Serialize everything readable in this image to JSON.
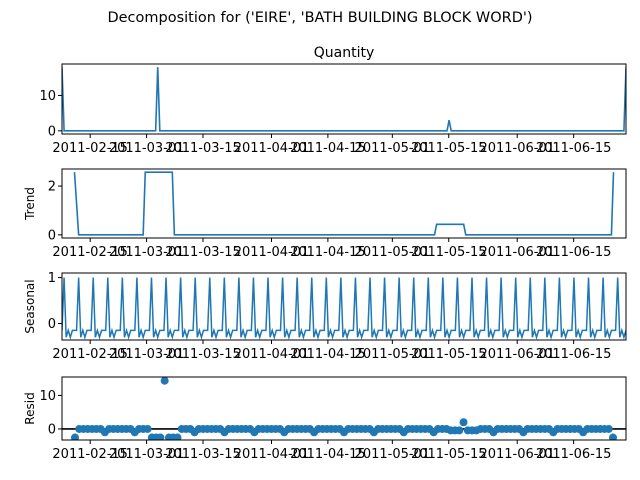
{
  "figure": {
    "title": "Decomposition for ('EIRE', 'BATH BUILDING BLOCK WORD')"
  },
  "colors": {
    "series": "#1f77b4",
    "axis": "#000000",
    "background": "#ffffff"
  },
  "chart_data": [
    {
      "type": "line",
      "title": "Quantity",
      "ylabel": "",
      "x_tick_labels": [
        "2011-02-15",
        "2011-03-01",
        "2011-03-15",
        "2011-04-01",
        "2011-04-15",
        "2011-05-01",
        "2011-05-15",
        "2011-06-01",
        "2011-06-15"
      ],
      "x_ticks_day": [
        7,
        21,
        35,
        52,
        66,
        82,
        96,
        113,
        127
      ],
      "xlim_day": [
        0,
        140
      ],
      "ylim": [
        -0.9,
        18.9
      ],
      "y_ticks": [
        0,
        10
      ],
      "points": [
        [
          0,
          18
        ],
        [
          1,
          0
        ],
        [
          45,
          0
        ],
        [
          46,
          18
        ],
        [
          47,
          0
        ],
        [
          185,
          0
        ],
        [
          186,
          3
        ],
        [
          187,
          0
        ],
        [
          270,
          0
        ],
        [
          271,
          18
        ]
      ],
      "points_index_max": 271
    },
    {
      "type": "line",
      "title": "",
      "ylabel": "Trend",
      "x_tick_labels": [
        "2011-02-15",
        "2011-03-01",
        "2011-03-15",
        "2011-04-01",
        "2011-04-15",
        "2011-05-01",
        "2011-05-15",
        "2011-06-01",
        "2011-06-15"
      ],
      "ylim": [
        -0.13,
        2.7
      ],
      "y_ticks": [
        0,
        2
      ],
      "points": [
        [
          6,
          2.57
        ],
        [
          8,
          0
        ],
        [
          39,
          0
        ],
        [
          40,
          2.57
        ],
        [
          53,
          2.57
        ],
        [
          54,
          0
        ],
        [
          179,
          0
        ],
        [
          180,
          0.43
        ],
        [
          193,
          0.43
        ],
        [
          194,
          0
        ],
        [
          264,
          0
        ],
        [
          265,
          2.57
        ]
      ]
    },
    {
      "type": "line",
      "title": "",
      "ylabel": "Seasonal",
      "x_tick_labels": [
        "2011-02-15",
        "2011-03-01",
        "2011-03-15",
        "2011-04-01",
        "2011-04-15",
        "2011-05-01",
        "2011-05-15",
        "2011-06-01",
        "2011-06-15"
      ],
      "ylim": [
        -0.36,
        1.1
      ],
      "y_ticks": [
        0,
        1
      ],
      "period": 7,
      "pattern": [
        -0.15,
        1.0,
        -0.3,
        -0.15,
        -0.3,
        -0.15,
        -0.15
      ],
      "phase_start": 0
    },
    {
      "type": "scatter",
      "title": "",
      "ylabel": "Resid",
      "x_tick_labels": [
        "2011-02-15",
        "2011-03-01",
        "2011-03-15",
        "2011-04-01",
        "2011-04-15",
        "2011-05-01",
        "2011-05-15",
        "2011-06-01",
        "2011-06-15"
      ],
      "ylim": [
        -3.3,
        15.5
      ],
      "y_ticks": [
        0,
        10
      ],
      "baseline": 0,
      "resid": [
        -2.57,
        0,
        0,
        0,
        0,
        0,
        0,
        -1,
        0,
        0,
        0,
        0,
        0,
        0,
        -1,
        0,
        0,
        0,
        -2.57,
        -2.57,
        -2.57,
        14.4,
        -2.57,
        -2.57,
        -2.57,
        0,
        0,
        0,
        -1,
        0,
        0,
        0,
        0,
        0,
        0,
        -1,
        0,
        0,
        0,
        0,
        0,
        0,
        -1,
        0,
        0,
        0,
        0,
        0,
        0,
        -1,
        0,
        0,
        0,
        0,
        0,
        0,
        -1,
        0,
        0,
        0,
        0,
        0,
        0,
        -1,
        0,
        0,
        0,
        0,
        0,
        0,
        -1,
        0,
        0,
        0,
        0,
        0,
        0,
        -1,
        0,
        0,
        0,
        0,
        0,
        0,
        -1,
        0,
        0,
        0,
        -0.43,
        -0.43,
        -0.43,
        2.0,
        -0.43,
        -0.43,
        -0.43,
        0,
        0,
        0,
        -1,
        0,
        0,
        0,
        0,
        0,
        0,
        -1,
        0,
        0,
        0,
        0,
        0,
        0,
        -1,
        0,
        0,
        0,
        0,
        0,
        0,
        -1,
        0,
        0,
        0,
        0,
        0,
        0,
        -2.57
      ]
    }
  ]
}
